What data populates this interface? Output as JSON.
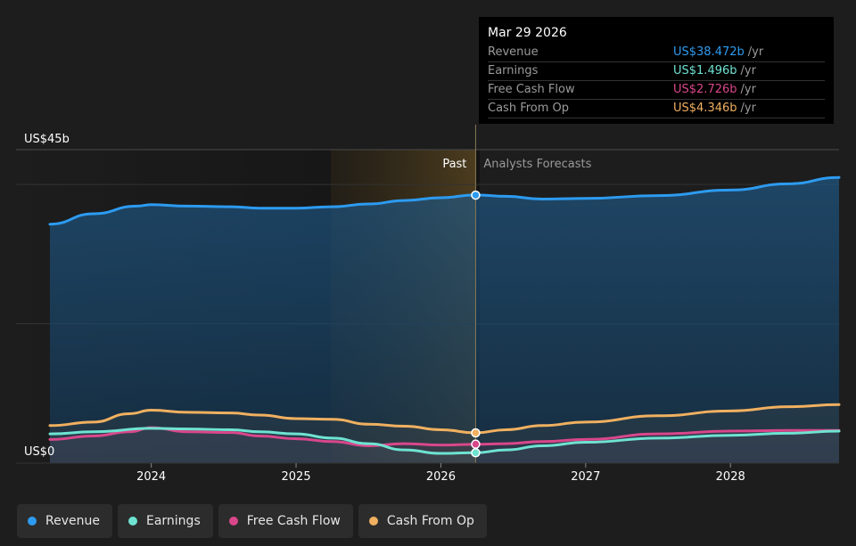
{
  "colors": {
    "revenue": "#2d9bf0",
    "earnings": "#6fe3d2",
    "fcf": "#d9478a",
    "cfo": "#f0b060",
    "background": "#1d1d1d"
  },
  "tooltip": {
    "date": "Mar 29 2026",
    "rows": [
      {
        "label": "Revenue",
        "value": "US$38.472b",
        "unit": "/yr",
        "color": "#2d9bf0"
      },
      {
        "label": "Earnings",
        "value": "US$1.496b",
        "unit": "/yr",
        "color": "#6fe3d2"
      },
      {
        "label": "Free Cash Flow",
        "value": "US$2.726b",
        "unit": "/yr",
        "color": "#d9478a"
      },
      {
        "label": "Cash From Op",
        "value": "US$4.346b",
        "unit": "/yr",
        "color": "#f0b060"
      }
    ]
  },
  "chart_data": {
    "type": "area",
    "title": "",
    "xlabel": "",
    "ylabel": "",
    "y_axis_labels": [
      "US$45b",
      "US$0"
    ],
    "ylim": [
      0,
      45
    ],
    "xlim": [
      2023.3,
      2028.75
    ],
    "x_ticks": [
      2024,
      2025,
      2026,
      2027,
      2028
    ],
    "x_tick_labels": [
      "2024",
      "2025",
      "2026",
      "2027",
      "2028"
    ],
    "grid": true,
    "past_label": "Past",
    "forecast_label": "Analysts Forecasts",
    "divider_x": 2026.24,
    "highlight_start_x": 2025.24,
    "series": [
      {
        "name": "Revenue",
        "key": "revenue",
        "x": [
          2023.3,
          2023.6,
          2023.9,
          2024.0,
          2024.25,
          2024.55,
          2024.75,
          2025.0,
          2025.25,
          2025.5,
          2025.75,
          2026.0,
          2026.24,
          2026.45,
          2026.7,
          2027.0,
          2027.5,
          2028.0,
          2028.4,
          2028.75
        ],
        "y": [
          34.3,
          35.8,
          36.9,
          37.1,
          36.9,
          36.8,
          36.6,
          36.6,
          36.8,
          37.2,
          37.7,
          38.1,
          38.5,
          38.3,
          37.9,
          38.0,
          38.4,
          39.2,
          40.1,
          41.0
        ]
      },
      {
        "name": "Earnings",
        "key": "earnings",
        "x": [
          2023.3,
          2023.6,
          2024.0,
          2024.25,
          2024.55,
          2024.75,
          2025.0,
          2025.25,
          2025.5,
          2025.75,
          2026.0,
          2026.24,
          2026.45,
          2026.7,
          2027.0,
          2027.5,
          2028.0,
          2028.4,
          2028.75
        ],
        "y": [
          4.2,
          4.5,
          5.0,
          4.9,
          4.8,
          4.5,
          4.2,
          3.6,
          2.8,
          1.9,
          1.4,
          1.5,
          1.9,
          2.5,
          3.0,
          3.6,
          4.0,
          4.3,
          4.6
        ]
      },
      {
        "name": "Free Cash Flow",
        "key": "fcf",
        "x": [
          2023.3,
          2023.6,
          2023.85,
          2024.0,
          2024.25,
          2024.55,
          2024.75,
          2025.0,
          2025.25,
          2025.5,
          2025.75,
          2026.0,
          2026.24,
          2026.45,
          2026.7,
          2027.0,
          2027.5,
          2028.0,
          2028.4,
          2028.75
        ],
        "y": [
          3.4,
          3.9,
          4.5,
          5.1,
          4.5,
          4.4,
          3.9,
          3.5,
          3.1,
          2.5,
          2.8,
          2.6,
          2.7,
          2.8,
          3.1,
          3.4,
          4.2,
          4.6,
          4.7,
          4.7
        ]
      },
      {
        "name": "Cash From Op",
        "key": "cfo",
        "x": [
          2023.3,
          2023.6,
          2023.85,
          2024.0,
          2024.25,
          2024.55,
          2024.75,
          2025.0,
          2025.25,
          2025.5,
          2025.75,
          2026.0,
          2026.24,
          2026.45,
          2026.7,
          2027.0,
          2027.5,
          2028.0,
          2028.4,
          2028.75
        ],
        "y": [
          5.4,
          5.9,
          7.1,
          7.6,
          7.3,
          7.2,
          6.9,
          6.4,
          6.3,
          5.6,
          5.3,
          4.8,
          4.35,
          4.8,
          5.4,
          5.9,
          6.8,
          7.5,
          8.1,
          8.4
        ]
      }
    ],
    "markers": [
      {
        "series": "revenue",
        "x": 2026.24,
        "y": 38.472
      },
      {
        "series": "cfo",
        "x": 2026.24,
        "y": 4.346
      },
      {
        "series": "fcf",
        "x": 2026.24,
        "y": 2.726
      },
      {
        "series": "earnings",
        "x": 2026.24,
        "y": 1.496
      }
    ]
  },
  "legend": [
    {
      "label": "Revenue",
      "color": "#2d9bf0"
    },
    {
      "label": "Earnings",
      "color": "#6fe3d2"
    },
    {
      "label": "Free Cash Flow",
      "color": "#d9478a"
    },
    {
      "label": "Cash From Op",
      "color": "#f0b060"
    }
  ]
}
